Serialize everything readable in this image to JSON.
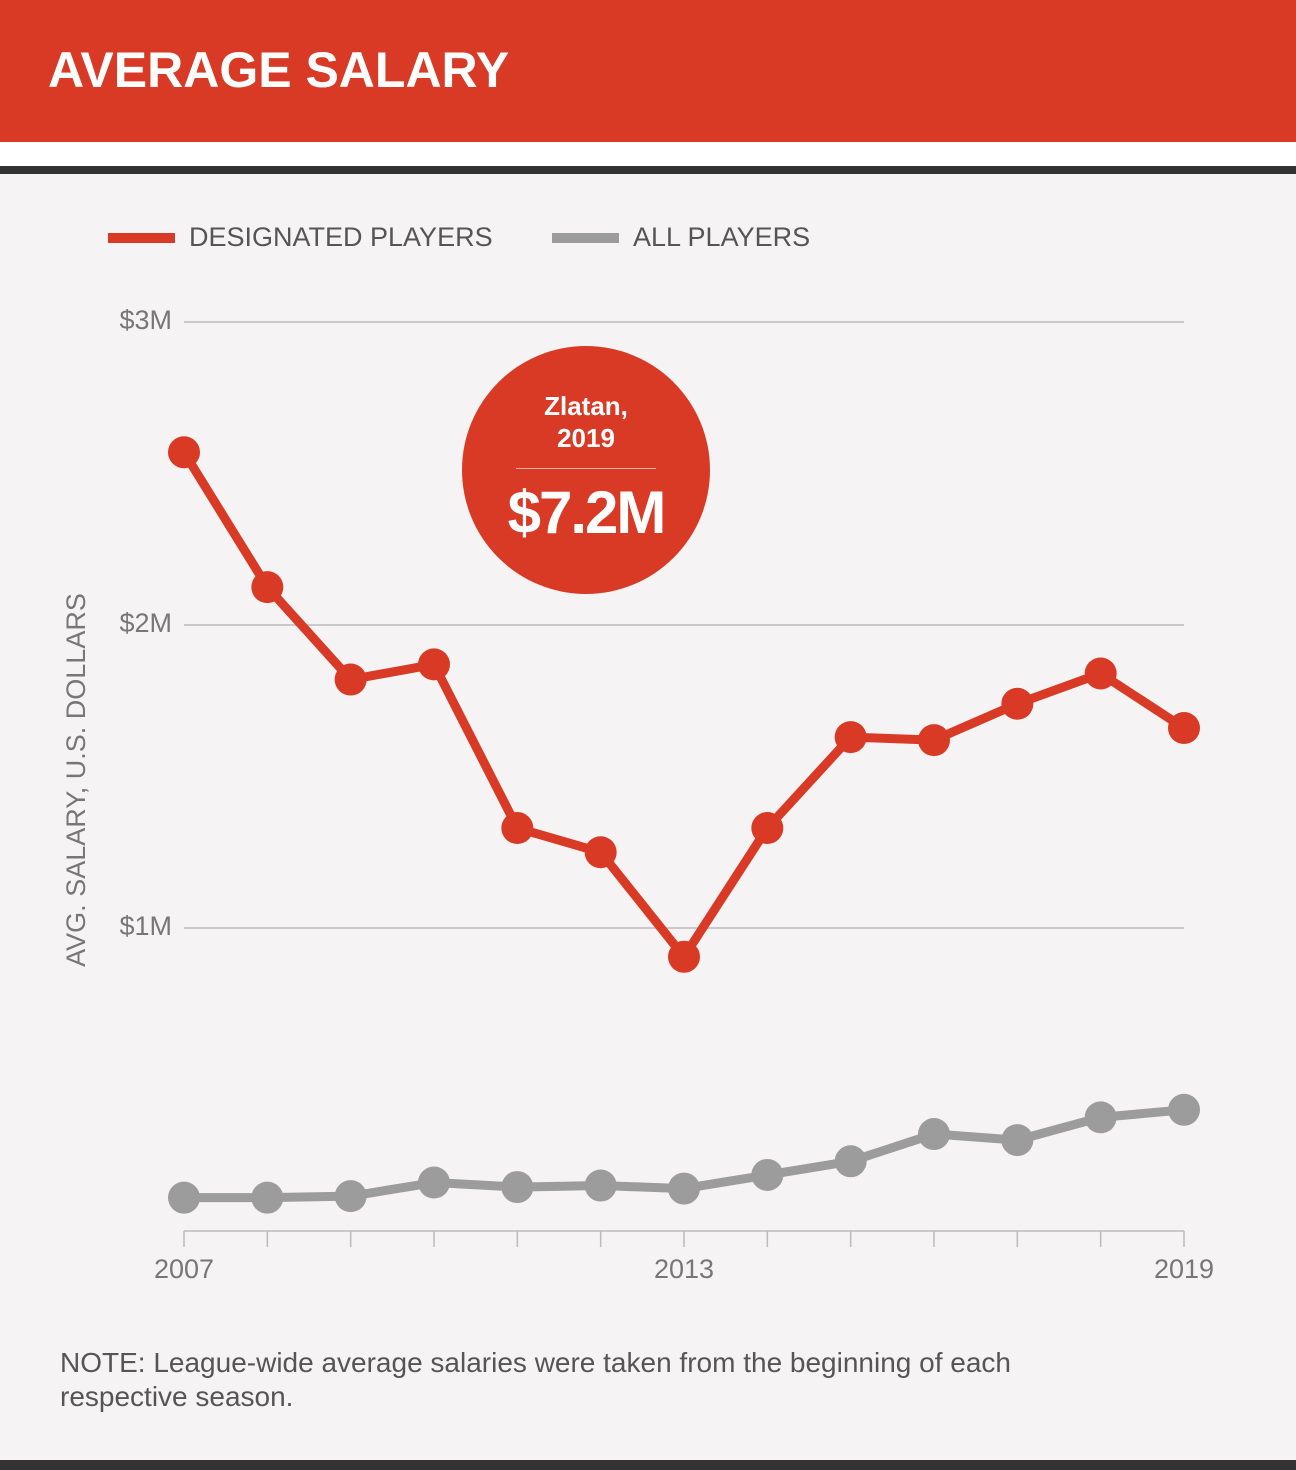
{
  "chart_data": {
    "type": "line",
    "title": "AVERAGE SALARY",
    "y_label": "AVG. SALARY, U.S. DOLLARS",
    "note": "NOTE: League-wide average salaries were taken from the beginning of each respective season.",
    "annotation": {
      "label": "Zlatan, 2019",
      "value_label": "$7.2M"
    },
    "categories": [
      "2007",
      null,
      null,
      null,
      null,
      null,
      "2013",
      null,
      null,
      null,
      null,
      null,
      "2019"
    ],
    "series": [
      {
        "name": "DESIGNATED PLAYERS",
        "color": "#d93a26",
        "values": [
          2570000,
          2125000,
          1820000,
          1870000,
          1330000,
          1250000,
          905000,
          1330000,
          1630000,
          1620000,
          1740000,
          1840000,
          1660000
        ]
      },
      {
        "name": "ALL PLAYERS",
        "color": "#9c9c9c",
        "values": [
          110000,
          110000,
          115000,
          160000,
          145000,
          150000,
          140000,
          185000,
          230000,
          320000,
          300000,
          375000,
          400000
        ]
      }
    ],
    "ylim": [
      0,
      3000000
    ],
    "yticks": [
      {
        "value": 1000000,
        "label": "$1M"
      },
      {
        "value": 2000000,
        "label": "$2M"
      },
      {
        "value": 3000000,
        "label": "$3M"
      }
    ],
    "grid": true
  }
}
